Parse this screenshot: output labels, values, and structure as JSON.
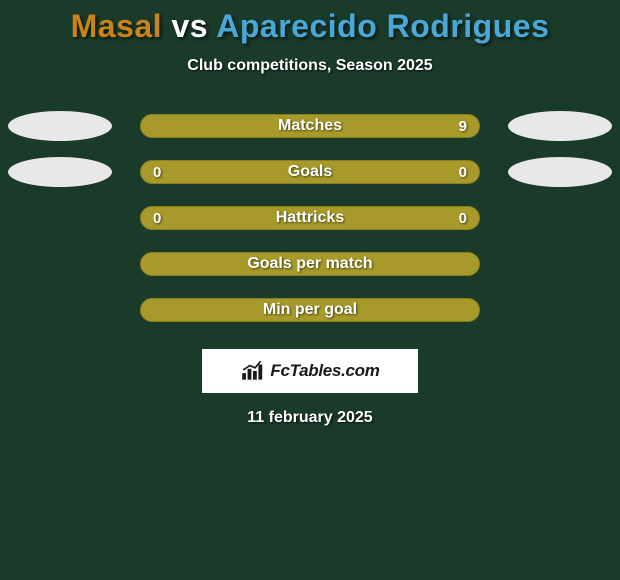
{
  "title": {
    "player1": "Masal",
    "vs": " vs ",
    "player2": "Aparecido Rodrigues",
    "player1_color": "#c9831a",
    "player2_color": "#4aa8d8"
  },
  "subtitle": "Club competitions, Season 2025",
  "background_color": "#1a3a2a",
  "avatar_color": "#e8e8e8",
  "rows": [
    {
      "label": "Matches",
      "left_val": "",
      "right_val": "9",
      "bar_color": "#a89a2a",
      "border_color": "#8a7d1f",
      "show_left_avatar": true,
      "show_right_avatar": true
    },
    {
      "label": "Goals",
      "left_val": "0",
      "right_val": "0",
      "bar_color": "#a89a2a",
      "border_color": "#8a7d1f",
      "show_left_avatar": true,
      "show_right_avatar": true
    },
    {
      "label": "Hattricks",
      "left_val": "0",
      "right_val": "0",
      "bar_color": "#a89a2a",
      "border_color": "#8a7d1f",
      "show_left_avatar": false,
      "show_right_avatar": false
    },
    {
      "label": "Goals per match",
      "left_val": "",
      "right_val": "",
      "bar_color": "#a89a2a",
      "border_color": "#8a7d1f",
      "show_left_avatar": false,
      "show_right_avatar": false
    },
    {
      "label": "Min per goal",
      "left_val": "",
      "right_val": "",
      "bar_color": "#a89a2a",
      "border_color": "#8a7d1f",
      "show_left_avatar": false,
      "show_right_avatar": false
    }
  ],
  "watermark": {
    "text": "FcTables.com"
  },
  "date": "11 february 2025"
}
